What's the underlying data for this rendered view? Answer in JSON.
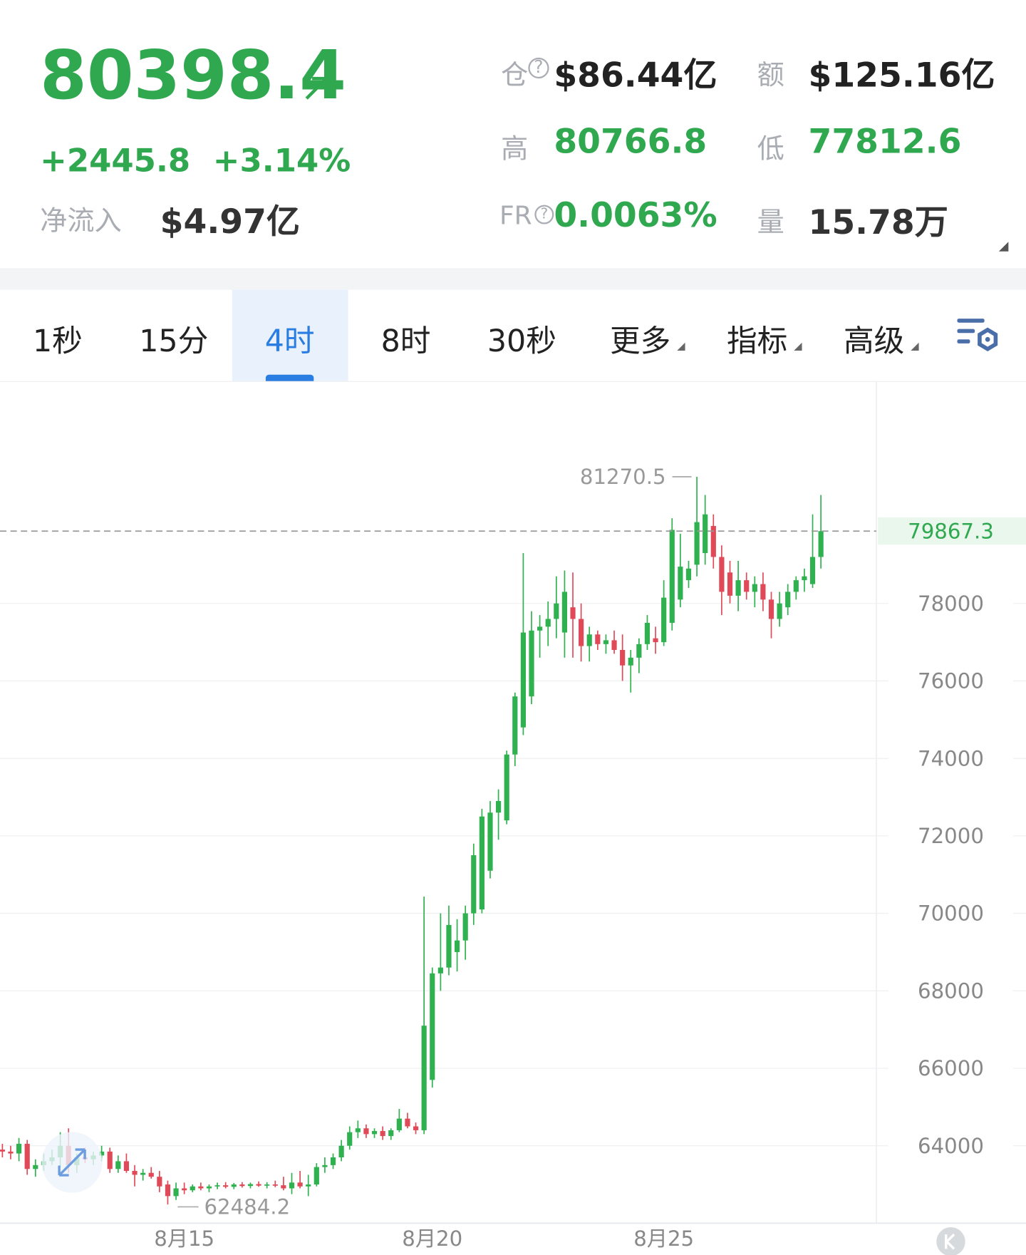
{
  "header": {
    "price": "80398.4",
    "change": "+2445.8",
    "change_pct": "+3.14%",
    "net_inflow_label": "净流入",
    "net_inflow": "$4.97亿",
    "stats": [
      {
        "label": "仓",
        "value": "$86.44亿"
      },
      {
        "label": "额",
        "value": "$125.16亿"
      },
      {
        "label": "高",
        "value": "80766.8"
      },
      {
        "label": "低",
        "value": "77812.6"
      },
      {
        "label": "FR",
        "value": "0.0063%"
      },
      {
        "label": "量",
        "value": "15.78万"
      }
    ]
  },
  "tabs": [
    "1秒",
    "15分",
    "4时",
    "8时",
    "30秒",
    "更多",
    "指标",
    "高级"
  ],
  "active_tab": 2,
  "chart_data": {
    "type": "candlestick",
    "up_color": "#2fb150",
    "down_color": "#e04a58",
    "ylim": [
      62000,
      83700
    ],
    "yticks": [
      64000,
      66000,
      68000,
      70000,
      72000,
      74000,
      76000,
      78000
    ],
    "grid": true,
    "current_price": 79867.3,
    "max_label": 81270.5,
    "min_label": 62484.2,
    "categories": [
      null,
      null,
      null,
      null,
      null,
      null,
      null,
      null,
      null,
      null,
      null,
      null,
      null,
      null,
      null,
      null,
      null,
      null,
      null,
      null,
      null,
      null,
      "8月15",
      null,
      null,
      null,
      null,
      null,
      null,
      null,
      null,
      null,
      null,
      null,
      null,
      null,
      null,
      null,
      null,
      null,
      null,
      null,
      null,
      null,
      null,
      null,
      null,
      null,
      null,
      null,
      null,
      null,
      "8月20",
      null,
      null,
      null,
      null,
      null,
      null,
      null,
      null,
      null,
      null,
      null,
      null,
      null,
      null,
      null,
      null,
      null,
      null,
      null,
      null,
      null,
      null,
      null,
      null,
      null,
      null,
      null,
      "8月25",
      null,
      null,
      null,
      null,
      null,
      null,
      null,
      null,
      null,
      null,
      null,
      null,
      null,
      null,
      null,
      null,
      null
    ],
    "ohlc": [
      [
        63900,
        64050,
        63700,
        63850
      ],
      [
        63850,
        64000,
        63650,
        63800
      ],
      [
        63800,
        64200,
        63600,
        64050
      ],
      [
        64050,
        64150,
        63250,
        63400
      ],
      [
        63400,
        63650,
        63200,
        63500
      ],
      [
        63500,
        63800,
        63350,
        63600
      ],
      [
        63600,
        63900,
        63500,
        63700
      ],
      [
        63700,
        64350,
        63450,
        64000
      ],
      [
        64000,
        64450,
        63300,
        63500
      ],
      [
        63500,
        63800,
        63300,
        63700
      ],
      [
        63700,
        63950,
        63550,
        63650
      ],
      [
        63650,
        63850,
        63500,
        63750
      ],
      [
        63750,
        64000,
        63600,
        63850
      ],
      [
        63850,
        63950,
        63300,
        63400
      ],
      [
        63400,
        63750,
        63300,
        63600
      ],
      [
        63600,
        63800,
        63300,
        63350
      ],
      [
        63350,
        63500,
        62950,
        63250
      ],
      [
        63250,
        63400,
        63100,
        63300
      ],
      [
        63300,
        63450,
        63150,
        63200
      ],
      [
        63200,
        63350,
        62800,
        62950
      ],
      [
        63000,
        63100,
        62484.2,
        62700
      ],
      [
        62700,
        63050,
        62600,
        62900
      ],
      [
        62900,
        63050,
        62750,
        62850
      ],
      [
        62850,
        63000,
        62800,
        62950
      ],
      [
        62950,
        63050,
        62850,
        62900
      ],
      [
        62900,
        63000,
        62800,
        62950
      ],
      [
        62950,
        63050,
        62880,
        62980
      ],
      [
        62980,
        63060,
        62900,
        62940
      ],
      [
        62940,
        63040,
        62880,
        63000
      ],
      [
        63000,
        63060,
        62920,
        62960
      ],
      [
        62960,
        63050,
        62900,
        63010
      ],
      [
        63010,
        63080,
        62940,
        62970
      ],
      [
        62970,
        63060,
        62900,
        63000
      ],
      [
        63000,
        63100,
        62930,
        62980
      ],
      [
        62980,
        63200,
        62850,
        62900
      ],
      [
        62900,
        63300,
        62750,
        63050
      ],
      [
        63050,
        63350,
        62900,
        62950
      ],
      [
        62950,
        63250,
        62700,
        63000
      ],
      [
        63000,
        63550,
        62950,
        63450
      ],
      [
        63450,
        63700,
        63300,
        63500
      ],
      [
        63500,
        63800,
        63400,
        63700
      ],
      [
        63700,
        64150,
        63600,
        64000
      ],
      [
        64000,
        64500,
        63900,
        64350
      ],
      [
        64350,
        64650,
        64200,
        64450
      ],
      [
        64450,
        64550,
        64200,
        64300
      ],
      [
        64300,
        64450,
        64200,
        64380
      ],
      [
        64380,
        64500,
        64150,
        64250
      ],
      [
        64250,
        64450,
        64150,
        64400
      ],
      [
        64400,
        64950,
        64350,
        64700
      ],
      [
        64700,
        64850,
        64450,
        64500
      ],
      [
        64500,
        64600,
        64300,
        64400
      ],
      [
        64400,
        70431,
        64300,
        67100
      ],
      [
        65700,
        68600,
        65500,
        68450
      ],
      [
        68450,
        70000,
        68000,
        68600
      ],
      [
        68600,
        70200,
        68400,
        69700
      ],
      [
        69000,
        69850,
        68500,
        69300
      ],
      [
        69300,
        70200,
        68800,
        70000
      ],
      [
        70000,
        71800,
        69700,
        71500
      ],
      [
        70100,
        72700,
        70000,
        72500
      ],
      [
        71100,
        72900,
        70900,
        72600
      ],
      [
        72600,
        73200,
        71900,
        72900
      ],
      [
        72400,
        74200,
        72300,
        74100
      ],
      [
        74100,
        75700,
        73800,
        75600
      ],
      [
        74800,
        79300,
        74600,
        77250
      ],
      [
        75600,
        77800,
        75400,
        77300
      ],
      [
        77300,
        77700,
        76600,
        77400
      ],
      [
        77400,
        78050,
        76900,
        77600
      ],
      [
        77600,
        78700,
        77100,
        78000
      ],
      [
        77250,
        78850,
        76600,
        78300
      ],
      [
        77900,
        78800,
        76600,
        77600
      ],
      [
        77600,
        78000,
        76500,
        76900
      ],
      [
        76900,
        77400,
        76500,
        77200
      ],
      [
        77200,
        77300,
        76800,
        76950
      ],
      [
        76950,
        77200,
        76700,
        77050
      ],
      [
        77050,
        77300,
        76700,
        76800
      ],
      [
        76800,
        77200,
        76000,
        76400
      ],
      [
        76400,
        76800,
        75700,
        76600
      ],
      [
        76600,
        77100,
        76200,
        76950
      ],
      [
        76950,
        77700,
        76800,
        77500
      ],
      [
        77100,
        77400,
        76700,
        77000
      ],
      [
        77000,
        78600,
        76900,
        78150
      ],
      [
        77500,
        80200,
        77300,
        79900
      ],
      [
        78100,
        79800,
        77900,
        78950
      ],
      [
        78600,
        79100,
        78400,
        78900
      ],
      [
        79000,
        81270.5,
        78700,
        80100
      ],
      [
        79300,
        80800,
        79000,
        80300
      ],
      [
        80000,
        80300,
        78900,
        79200
      ],
      [
        79200,
        79500,
        77700,
        78300
      ],
      [
        78800,
        79100,
        78000,
        78200
      ],
      [
        78200,
        79100,
        77800,
        78600
      ],
      [
        78600,
        78800,
        78100,
        78300
      ],
      [
        78300,
        78700,
        77900,
        78500
      ],
      [
        78500,
        78800,
        77800,
        78100
      ],
      [
        78100,
        78300,
        77100,
        77600
      ],
      [
        77600,
        78300,
        77400,
        78000
      ],
      [
        77900,
        78500,
        77700,
        78300
      ],
      [
        78300,
        78700,
        78100,
        78600
      ],
      [
        78600,
        78900,
        78300,
        78700
      ],
      [
        78500,
        80300,
        78400,
        79200
      ],
      [
        79200,
        80800,
        78900,
        79867.3
      ]
    ]
  }
}
